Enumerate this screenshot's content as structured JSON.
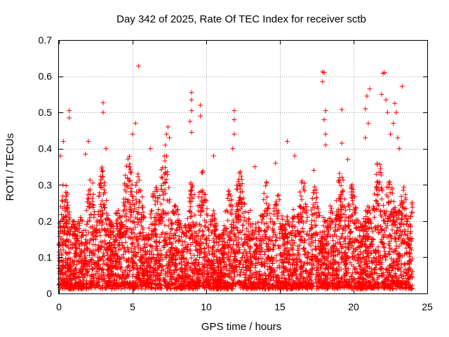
{
  "chart_data": {
    "type": "scatter",
    "title": "Day 342 of 2025, Rate Of TEC Index for receiver sctb",
    "xlabel": "GPS time / hours",
    "ylabel": "ROTI / TECUs",
    "xlim": [
      0,
      25
    ],
    "ylim": [
      0,
      0.7
    ],
    "xticks": [
      0,
      5,
      10,
      15,
      20,
      25
    ],
    "xtick_labels": [
      "0",
      "5",
      "10",
      "15",
      "20",
      "25"
    ],
    "yticks": [
      0,
      0.1,
      0.2,
      0.3,
      0.4,
      0.5,
      0.6,
      0.7
    ],
    "ytick_labels": [
      "0",
      "0.1",
      "0.2",
      "0.3",
      "0.4",
      "0.5",
      "0.6",
      "0.7"
    ],
    "grid": true,
    "marker": "plus",
    "color": "#ff0000",
    "x_data_range": [
      0,
      24
    ],
    "density_profile": [
      {
        "x": 0,
        "y_max": 0.33
      },
      {
        "x": 1,
        "y_max": 0.34
      },
      {
        "x": 2,
        "y_max": 0.32
      },
      {
        "x": 3,
        "y_max": 0.4
      },
      {
        "x": 4,
        "y_max": 0.32
      },
      {
        "x": 5,
        "y_max": 0.44
      },
      {
        "x": 6,
        "y_max": 0.32
      },
      {
        "x": 7,
        "y_max": 0.46
      },
      {
        "x": 8,
        "y_max": 0.3
      },
      {
        "x": 9,
        "y_max": 0.38
      },
      {
        "x": 10,
        "y_max": 0.33
      },
      {
        "x": 11,
        "y_max": 0.29
      },
      {
        "x": 12,
        "y_max": 0.36
      },
      {
        "x": 13,
        "y_max": 0.34
      },
      {
        "x": 14,
        "y_max": 0.34
      },
      {
        "x": 15,
        "y_max": 0.3
      },
      {
        "x": 16,
        "y_max": 0.38
      },
      {
        "x": 17,
        "y_max": 0.3
      },
      {
        "x": 18,
        "y_max": 0.36
      },
      {
        "x": 19,
        "y_max": 0.35
      },
      {
        "x": 20,
        "y_max": 0.35
      },
      {
        "x": 21,
        "y_max": 0.34
      },
      {
        "x": 22,
        "y_max": 0.4
      },
      {
        "x": 23,
        "y_max": 0.42
      },
      {
        "x": 24,
        "y_max": 0.3
      }
    ],
    "points": [
      {
        "x": 0.7,
        "y": 0.505
      },
      {
        "x": 0.7,
        "y": 0.485
      },
      {
        "x": 3.0,
        "y": 0.527
      },
      {
        "x": 3.0,
        "y": 0.5
      },
      {
        "x": 3.2,
        "y": 0.4
      },
      {
        "x": 5.4,
        "y": 0.628
      },
      {
        "x": 5.2,
        "y": 0.47
      },
      {
        "x": 5.0,
        "y": 0.44
      },
      {
        "x": 7.4,
        "y": 0.46
      },
      {
        "x": 7.3,
        "y": 0.44
      },
      {
        "x": 9.0,
        "y": 0.555
      },
      {
        "x": 9.0,
        "y": 0.535
      },
      {
        "x": 9.0,
        "y": 0.505
      },
      {
        "x": 8.9,
        "y": 0.475
      },
      {
        "x": 9.0,
        "y": 0.445
      },
      {
        "x": 9.6,
        "y": 0.52
      },
      {
        "x": 9.6,
        "y": 0.49
      },
      {
        "x": 11.9,
        "y": 0.505
      },
      {
        "x": 11.9,
        "y": 0.48
      },
      {
        "x": 11.9,
        "y": 0.44
      },
      {
        "x": 11.8,
        "y": 0.4
      },
      {
        "x": 15.5,
        "y": 0.42
      },
      {
        "x": 16.0,
        "y": 0.38
      },
      {
        "x": 17.9,
        "y": 0.612
      },
      {
        "x": 18.0,
        "y": 0.61
      },
      {
        "x": 17.9,
        "y": 0.585
      },
      {
        "x": 18.1,
        "y": 0.505
      },
      {
        "x": 18.0,
        "y": 0.48
      },
      {
        "x": 18.1,
        "y": 0.44
      },
      {
        "x": 18.1,
        "y": 0.41
      },
      {
        "x": 19.2,
        "y": 0.508
      },
      {
        "x": 19.2,
        "y": 0.415
      },
      {
        "x": 20.9,
        "y": 0.545
      },
      {
        "x": 20.8,
        "y": 0.51
      },
      {
        "x": 21.1,
        "y": 0.565
      },
      {
        "x": 21.0,
        "y": 0.47
      },
      {
        "x": 20.8,
        "y": 0.43
      },
      {
        "x": 22.1,
        "y": 0.61
      },
      {
        "x": 22.0,
        "y": 0.608
      },
      {
        "x": 21.9,
        "y": 0.55
      },
      {
        "x": 22.2,
        "y": 0.535
      },
      {
        "x": 22.3,
        "y": 0.5
      },
      {
        "x": 22.5,
        "y": 0.44
      },
      {
        "x": 22.8,
        "y": 0.525
      },
      {
        "x": 22.9,
        "y": 0.5
      },
      {
        "x": 22.7,
        "y": 0.47
      },
      {
        "x": 23.3,
        "y": 0.572
      },
      {
        "x": 23.0,
        "y": 0.43
      },
      {
        "x": 23.1,
        "y": 0.4
      },
      {
        "x": 2.0,
        "y": 0.42
      },
      {
        "x": 1.8,
        "y": 0.385
      },
      {
        "x": 6.2,
        "y": 0.4
      },
      {
        "x": 7.5,
        "y": 0.43
      },
      {
        "x": 10.5,
        "y": 0.38
      },
      {
        "x": 13.3,
        "y": 0.35
      },
      {
        "x": 14.7,
        "y": 0.36
      },
      {
        "x": 17.3,
        "y": 0.34
      },
      {
        "x": 19.6,
        "y": 0.37
      },
      {
        "x": 0.1,
        "y": 0.38
      },
      {
        "x": 0.3,
        "y": 0.42
      }
    ]
  }
}
